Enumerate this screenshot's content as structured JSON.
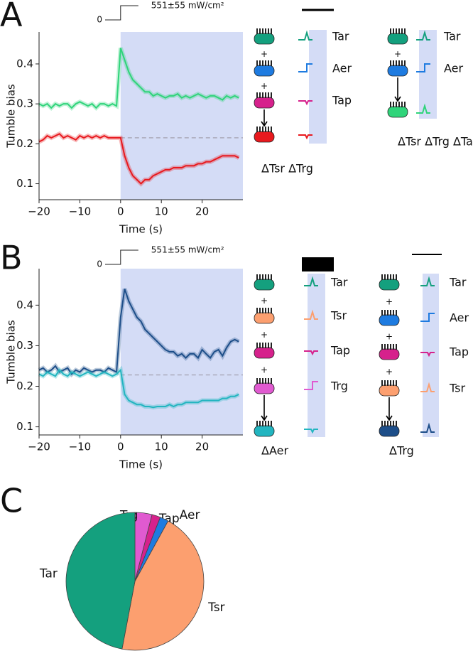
{
  "panel_labels": [
    "A",
    "B",
    "C"
  ],
  "schematics": [
    {
      "receptors": [
        "Tar",
        "Aer",
        "Tap"
      ]
    },
    {
      "receptors": [
        "Tar",
        "Aer"
      ]
    },
    {
      "receptors": [
        "Tar",
        "Tsr",
        "Tap",
        "Trg"
      ]
    },
    {
      "receptors": [
        "Tar",
        "Aer",
        "Tap",
        "Tsr"
      ]
    }
  ],
  "chart_data": [
    {
      "type": "line",
      "xlabel": "Time (s)",
      "ylabel": "Tumble bias",
      "annotations": [
        "0",
        "551±55 mW/cm²"
      ],
      "x": [
        -20,
        -19,
        -18,
        -17,
        -16,
        -15,
        -14,
        -13,
        -12,
        -11,
        -10,
        -9,
        -8,
        -7,
        -6,
        -5,
        -4,
        -3,
        -2,
        -1,
        0,
        1,
        2,
        3,
        4,
        5,
        6,
        7,
        8,
        9,
        10,
        11,
        12,
        13,
        14,
        15,
        16,
        17,
        18,
        19,
        20,
        21,
        22,
        23,
        24,
        25,
        26,
        27,
        28,
        29
      ],
      "series": [
        {
          "name": "ΔTsr ΔTrg ΔTap",
          "color": "#2fd47a",
          "values": [
            0.3,
            0.295,
            0.3,
            0.29,
            0.3,
            0.295,
            0.3,
            0.3,
            0.29,
            0.3,
            0.305,
            0.3,
            0.295,
            0.3,
            0.29,
            0.3,
            0.3,
            0.295,
            0.3,
            0.295,
            0.44,
            0.41,
            0.38,
            0.36,
            0.35,
            0.34,
            0.33,
            0.33,
            0.32,
            0.325,
            0.32,
            0.315,
            0.32,
            0.32,
            0.325,
            0.315,
            0.32,
            0.315,
            0.32,
            0.325,
            0.32,
            0.315,
            0.32,
            0.32,
            0.315,
            0.31,
            0.32,
            0.315,
            0.32,
            0.315
          ]
        },
        {
          "name": "ΔTsr ΔTrg",
          "color": "#e8191e",
          "values": [
            0.205,
            0.21,
            0.22,
            0.215,
            0.22,
            0.225,
            0.215,
            0.22,
            0.215,
            0.21,
            0.22,
            0.215,
            0.22,
            0.215,
            0.22,
            0.215,
            0.22,
            0.215,
            0.215,
            0.215,
            0.215,
            0.17,
            0.14,
            0.12,
            0.11,
            0.1,
            0.11,
            0.11,
            0.12,
            0.125,
            0.13,
            0.135,
            0.135,
            0.14,
            0.14,
            0.14,
            0.145,
            0.145,
            0.145,
            0.15,
            0.15,
            0.155,
            0.155,
            0.16,
            0.165,
            0.17,
            0.17,
            0.17,
            0.17,
            0.165
          ]
        }
      ],
      "xlim": [
        -20,
        30
      ],
      "ylim": [
        0.06,
        0.48
      ],
      "xticks": [
        {
          "value": -20,
          "label": "−20"
        },
        {
          "value": -10,
          "label": "−10"
        },
        0,
        10,
        20
      ],
      "yticks": [
        0.1,
        0.2,
        0.3,
        0.4
      ],
      "stimulus_on": 0,
      "baseline": 0.215
    },
    {
      "type": "line",
      "xlabel": "Time (s)",
      "ylabel": "Tumble bias",
      "annotations": [
        "0",
        "551±55 mW/cm²"
      ],
      "x": [
        -20,
        -19,
        -18,
        -17,
        -16,
        -15,
        -14,
        -13,
        -12,
        -11,
        -10,
        -9,
        -8,
        -7,
        -6,
        -5,
        -4,
        -3,
        -2,
        -1,
        0,
        1,
        2,
        3,
        4,
        5,
        6,
        7,
        8,
        9,
        10,
        11,
        12,
        13,
        14,
        15,
        16,
        17,
        18,
        19,
        20,
        21,
        22,
        23,
        24,
        25,
        26,
        27,
        28,
        29
      ],
      "series": [
        {
          "name": "ΔTrg",
          "color": "#1d4e89",
          "values": [
            0.24,
            0.245,
            0.235,
            0.24,
            0.25,
            0.235,
            0.24,
            0.245,
            0.23,
            0.24,
            0.235,
            0.245,
            0.24,
            0.235,
            0.24,
            0.24,
            0.235,
            0.245,
            0.24,
            0.235,
            0.37,
            0.44,
            0.41,
            0.39,
            0.37,
            0.36,
            0.34,
            0.33,
            0.32,
            0.31,
            0.3,
            0.29,
            0.285,
            0.285,
            0.275,
            0.28,
            0.27,
            0.28,
            0.28,
            0.27,
            0.29,
            0.28,
            0.27,
            0.285,
            0.29,
            0.275,
            0.295,
            0.31,
            0.315,
            0.31
          ]
        },
        {
          "name": "ΔAer",
          "color": "#22b5c0",
          "values": [
            0.23,
            0.225,
            0.235,
            0.23,
            0.225,
            0.24,
            0.23,
            0.225,
            0.235,
            0.23,
            0.225,
            0.23,
            0.235,
            0.23,
            0.225,
            0.23,
            0.235,
            0.23,
            0.225,
            0.23,
            0.24,
            0.18,
            0.165,
            0.16,
            0.155,
            0.155,
            0.15,
            0.15,
            0.148,
            0.15,
            0.15,
            0.15,
            0.155,
            0.15,
            0.155,
            0.155,
            0.16,
            0.16,
            0.16,
            0.16,
            0.165,
            0.165,
            0.165,
            0.165,
            0.165,
            0.17,
            0.17,
            0.175,
            0.175,
            0.18
          ]
        }
      ],
      "xlim": [
        -20,
        30
      ],
      "ylim": [
        0.08,
        0.49
      ],
      "xticks": [
        {
          "value": -20,
          "label": "−20"
        },
        {
          "value": -10,
          "label": "−10"
        },
        0,
        10,
        20
      ],
      "yticks": [
        0.1,
        0.2,
        0.3,
        0.4
      ],
      "stimulus_on": 0,
      "baseline": 0.228
    },
    {
      "type": "pie",
      "categories": [
        "Trg",
        "Tap",
        "Aer",
        "Tsr",
        "Tar"
      ],
      "values": [
        4,
        2,
        2,
        45,
        47
      ],
      "colors": [
        "#e05ad0",
        "#d6218c",
        "#1e7be0",
        "#fc9f6f",
        "#14a07e"
      ]
    }
  ]
}
